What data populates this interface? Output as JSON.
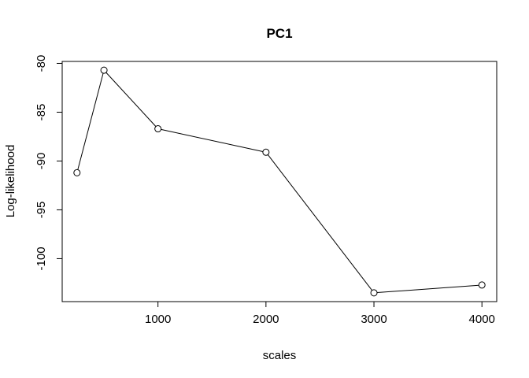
{
  "chart_data": {
    "type": "line",
    "title": "PC1",
    "xlabel": "scales",
    "ylabel": "Log-likelihood",
    "x": [
      250,
      500,
      1000,
      2000,
      3000,
      4000
    ],
    "series": [
      {
        "values": [
          -91.2,
          -80.7,
          -86.7,
          -89.1,
          -103.5,
          -102.7
        ]
      }
    ],
    "xticks": [
      1000,
      2000,
      3000,
      4000
    ],
    "xtick_labels": [
      "1000",
      "2000",
      "3000",
      "4000"
    ],
    "yticks": [
      -80,
      -85,
      -90,
      -95,
      -100
    ],
    "ytick_labels": [
      "-80",
      "-85",
      "-90",
      "-95",
      "-100"
    ],
    "xlim": [
      113,
      4137
    ],
    "ylim": [
      -104.4,
      -79.8
    ],
    "grid": false,
    "markers": "open-circle",
    "line_color": "#000000"
  }
}
